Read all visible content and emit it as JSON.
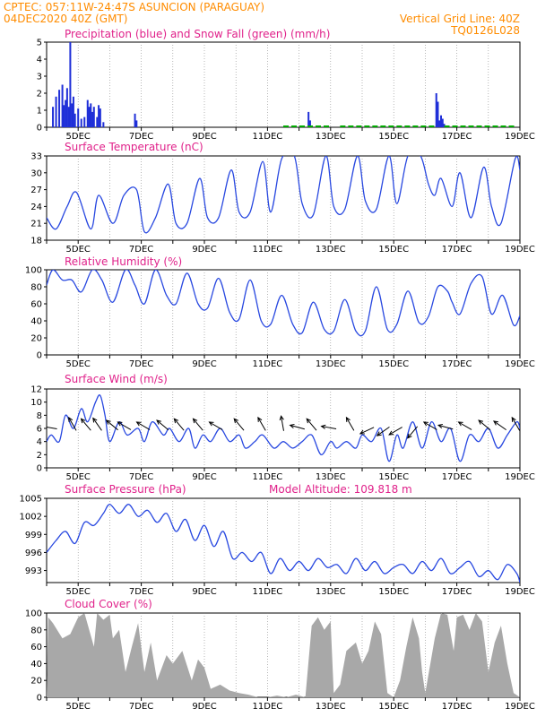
{
  "header": {
    "line1": "CPTEC:   057:11W-24:47S   ASUNCION (PARAGUAY)",
    "date": "04DEC2020 40Z (GMT)",
    "grid_note": "Vertical Grid Line: 40Z",
    "code": "TQ0126L028"
  },
  "x_ticks": [
    "5DEC",
    "7DEC",
    "9DEC",
    "11DEC",
    "13DEC",
    "15DEC",
    "17DEC",
    "19DEC"
  ],
  "colors": {
    "rain": "#1f2fd8",
    "snow": "#00aa00",
    "line": "#2848e0",
    "cloud": "#a8a8a8",
    "title": "#e0218a",
    "header": "#ff8c00"
  },
  "chart_data": [
    {
      "type": "bar",
      "title": "Precipitation (blue) and Snow Fall (green) (mm/h)",
      "ylim": [
        0,
        5
      ],
      "yticks": [
        "0",
        "1",
        "2",
        "3",
        "4",
        "5"
      ],
      "x_range_days": [
        4,
        19
      ],
      "series": [
        {
          "name": "Precipitation",
          "x": [
            4.2,
            4.3,
            4.4,
            4.5,
            4.55,
            4.6,
            4.65,
            4.7,
            4.75,
            4.8,
            4.85,
            4.9,
            5.0,
            5.1,
            5.2,
            5.3,
            5.35,
            5.4,
            5.45,
            5.5,
            5.6,
            5.65,
            5.7,
            5.8,
            6.8,
            6.85,
            12.3,
            12.35,
            16.35,
            16.4,
            16.45,
            16.5,
            16.55,
            16.6
          ],
          "values": [
            1.2,
            1.8,
            2.2,
            2.5,
            1.3,
            1.6,
            2.3,
            1.2,
            5.0,
            1.4,
            1.8,
            0.8,
            1.1,
            0.5,
            0.6,
            1.6,
            1.2,
            1.4,
            0.9,
            1.2,
            0.6,
            1.3,
            1.1,
            0.3,
            0.8,
            0.4,
            0.9,
            0.4,
            2.0,
            1.5,
            0.4,
            0.7,
            0.5,
            0.2
          ]
        },
        {
          "name": "Snow Fall",
          "x": [],
          "values": []
        }
      ]
    },
    {
      "type": "line",
      "title": "Surface Temperature (nC)",
      "ylim": [
        18,
        33
      ],
      "yticks": [
        "18",
        "21",
        "24",
        "27",
        "30",
        "33"
      ],
      "x_range_days": [
        4,
        19
      ],
      "series": [
        {
          "name": "Temperature",
          "x": [
            4.0,
            4.3,
            4.65,
            4.95,
            5.4,
            5.65,
            6.1,
            6.45,
            6.85,
            7.1,
            7.45,
            7.85,
            8.1,
            8.45,
            8.85,
            9.1,
            9.45,
            9.85,
            10.1,
            10.45,
            10.85,
            11.1,
            11.45,
            11.85,
            12.1,
            12.45,
            12.85,
            13.1,
            13.45,
            13.85,
            14.1,
            14.45,
            14.85,
            15.1,
            15.45,
            15.85,
            16.1,
            16.3,
            16.5,
            16.85,
            17.1,
            17.45,
            17.85,
            18.1,
            18.4,
            18.85,
            19.0
          ],
          "values": [
            22,
            20,
            24,
            26.5,
            20,
            26,
            21,
            26,
            27,
            19.5,
            22,
            28,
            21,
            21,
            29,
            22,
            22,
            30.5,
            23,
            23,
            32,
            23,
            32.5,
            33,
            24.5,
            22.5,
            33,
            24,
            23.5,
            33,
            25,
            23.5,
            33,
            24.5,
            33,
            33,
            28,
            26,
            29,
            24,
            30,
            22,
            31,
            24,
            21,
            32.5,
            30.5
          ]
        }
      ]
    },
    {
      "type": "line",
      "title": "Relative Humidity (%)",
      "ylim": [
        0,
        100
      ],
      "yticks": [
        "0",
        "20",
        "40",
        "60",
        "80",
        "100"
      ],
      "x_range_days": [
        4,
        19
      ],
      "series": [
        {
          "name": "Relative Humidity",
          "x": [
            4.0,
            4.2,
            4.5,
            4.8,
            5.1,
            5.45,
            5.75,
            6.1,
            6.5,
            6.8,
            7.1,
            7.45,
            7.8,
            8.1,
            8.45,
            8.8,
            9.1,
            9.45,
            9.8,
            10.1,
            10.45,
            10.8,
            11.1,
            11.45,
            11.8,
            12.1,
            12.45,
            12.8,
            13.1,
            13.45,
            13.8,
            14.1,
            14.45,
            14.8,
            15.1,
            15.45,
            15.8,
            16.1,
            16.4,
            16.7,
            16.85,
            17.1,
            17.45,
            17.8,
            18.1,
            18.45,
            18.8,
            19.0
          ],
          "values": [
            82,
            100,
            88,
            88,
            74,
            100,
            88,
            62,
            100,
            82,
            60,
            100,
            70,
            60,
            96,
            60,
            55,
            90,
            50,
            42,
            88,
            40,
            36,
            70,
            36,
            26,
            62,
            30,
            28,
            65,
            28,
            28,
            80,
            30,
            36,
            75,
            38,
            45,
            80,
            75,
            62,
            48,
            84,
            92,
            48,
            70,
            35,
            46
          ]
        }
      ]
    },
    {
      "type": "line",
      "title": "Surface Wind (m/s)",
      "ylim": [
        0,
        12
      ],
      "yticks": [
        "0",
        "2",
        "4",
        "6",
        "8",
        "10",
        "12"
      ],
      "x_range_days": [
        4,
        19
      ],
      "series": [
        {
          "name": "Wind speed",
          "x": [
            4.0,
            4.15,
            4.4,
            4.6,
            4.85,
            5.1,
            5.3,
            5.55,
            5.7,
            5.85,
            6.0,
            6.3,
            6.55,
            6.9,
            7.1,
            7.35,
            7.7,
            7.9,
            8.2,
            8.5,
            8.7,
            8.95,
            9.2,
            9.5,
            9.8,
            10.1,
            10.3,
            10.6,
            10.85,
            11.2,
            11.5,
            11.8,
            12.1,
            12.4,
            12.7,
            13.0,
            13.2,
            13.5,
            13.8,
            14.0,
            14.3,
            14.6,
            14.85,
            15.1,
            15.3,
            15.6,
            15.9,
            16.2,
            16.5,
            16.8,
            17.1,
            17.4,
            17.7,
            18.0,
            18.3,
            18.6,
            18.9,
            19.0
          ],
          "values": [
            4,
            5,
            4,
            8,
            6,
            9,
            7,
            10,
            11,
            8,
            4,
            7,
            5,
            6,
            4,
            7,
            5,
            6,
            4,
            6,
            3,
            5,
            4,
            6,
            4,
            5,
            3,
            4,
            5,
            3,
            4,
            3,
            4,
            5,
            2,
            4,
            3,
            4,
            3,
            5,
            4,
            6,
            1,
            5,
            3,
            7,
            3,
            7,
            4,
            6,
            1,
            5,
            4,
            6,
            3,
            5,
            7,
            6
          ]
        }
      ],
      "arrows": [
        {
          "x": 4.25,
          "dir_deg": 170
        },
        {
          "x": 4.9,
          "dir_deg": 120
        },
        {
          "x": 5.35,
          "dir_deg": 130
        },
        {
          "x": 5.7,
          "dir_deg": 125
        },
        {
          "x": 6.2,
          "dir_deg": 140
        },
        {
          "x": 6.6,
          "dir_deg": 150
        },
        {
          "x": 7.2,
          "dir_deg": 150
        },
        {
          "x": 7.8,
          "dir_deg": 140
        },
        {
          "x": 8.3,
          "dir_deg": 130
        },
        {
          "x": 8.9,
          "dir_deg": 130
        },
        {
          "x": 9.5,
          "dir_deg": 150
        },
        {
          "x": 10.2,
          "dir_deg": 130
        },
        {
          "x": 10.9,
          "dir_deg": 120
        },
        {
          "x": 11.5,
          "dir_deg": 100
        },
        {
          "x": 12.1,
          "dir_deg": 165
        },
        {
          "x": 12.5,
          "dir_deg": 130
        },
        {
          "x": 13.1,
          "dir_deg": 170
        },
        {
          "x": 13.7,
          "dir_deg": 120
        },
        {
          "x": 14.3,
          "dir_deg": 205
        },
        {
          "x": 14.8,
          "dir_deg": 215
        },
        {
          "x": 15.2,
          "dir_deg": 210
        },
        {
          "x": 15.7,
          "dir_deg": 230
        },
        {
          "x": 16.3,
          "dir_deg": 150
        },
        {
          "x": 16.8,
          "dir_deg": 165
        },
        {
          "x": 17.4,
          "dir_deg": 150
        },
        {
          "x": 18.0,
          "dir_deg": 140
        },
        {
          "x": 18.5,
          "dir_deg": 145
        },
        {
          "x": 18.95,
          "dir_deg": 120
        }
      ]
    },
    {
      "type": "line",
      "title": "Surface Pressure (hPa)",
      "subtitle": "Model Altitude: 109.818  m",
      "ylim": [
        991,
        1005
      ],
      "yticks": [
        "993",
        "996",
        "999",
        "1002",
        "1005"
      ],
      "x_range_days": [
        4,
        19
      ],
      "series": [
        {
          "name": "Pressure",
          "x": [
            4.0,
            4.3,
            4.6,
            4.9,
            5.2,
            5.5,
            5.8,
            6.0,
            6.3,
            6.6,
            6.9,
            7.2,
            7.5,
            7.8,
            8.1,
            8.4,
            8.7,
            9.0,
            9.3,
            9.6,
            9.9,
            10.2,
            10.5,
            10.8,
            11.1,
            11.4,
            11.7,
            12.0,
            12.3,
            12.6,
            12.9,
            13.2,
            13.5,
            13.8,
            14.1,
            14.4,
            14.7,
            15.0,
            15.3,
            15.6,
            15.9,
            16.2,
            16.5,
            16.8,
            17.1,
            17.4,
            17.7,
            18.0,
            18.3,
            18.6,
            18.9,
            19.0
          ],
          "values": [
            996,
            998,
            999.5,
            997.5,
            1001,
            1000.5,
            1002.5,
            1004,
            1002.5,
            1004,
            1002,
            1003,
            1001,
            1002.5,
            999.5,
            1001.5,
            998,
            1000.5,
            997,
            999.5,
            995,
            996,
            994.5,
            996,
            992.5,
            995,
            993,
            994.5,
            993,
            995,
            993.5,
            994,
            992.5,
            995,
            993,
            994.5,
            992.5,
            993.5,
            994,
            992.5,
            994.5,
            993,
            995,
            992.5,
            993.5,
            994.5,
            992,
            993,
            991.5,
            994,
            992.5,
            991
          ]
        }
      ]
    },
    {
      "type": "area",
      "title": "Cloud Cover (%)",
      "ylim": [
        0,
        100
      ],
      "yticks": [
        "0",
        "20",
        "40",
        "60",
        "80",
        "100"
      ],
      "x_range_days": [
        4,
        19
      ],
      "series": [
        {
          "name": "Cloud Cover",
          "x": [
            4.0,
            4.05,
            4.2,
            4.5,
            4.75,
            5.0,
            5.2,
            5.5,
            5.6,
            5.8,
            6.0,
            6.1,
            6.3,
            6.5,
            6.7,
            6.9,
            7.1,
            7.3,
            7.5,
            7.8,
            8.0,
            8.3,
            8.6,
            8.8,
            9.0,
            9.2,
            9.5,
            9.8,
            10.1,
            10.4,
            10.7,
            11.0,
            11.3,
            11.6,
            11.9,
            12.2,
            12.4,
            12.6,
            12.8,
            13.0,
            13.1,
            13.3,
            13.5,
            13.8,
            14.0,
            14.2,
            14.4,
            14.6,
            14.8,
            15.0,
            15.2,
            15.4,
            15.6,
            15.8,
            15.9,
            16.0,
            16.3,
            16.5,
            16.7,
            16.9,
            17.0,
            17.2,
            17.4,
            17.6,
            17.8,
            18.0,
            18.2,
            18.4,
            18.6,
            18.8,
            19.0
          ],
          "values": [
            0,
            95,
            88,
            70,
            75,
            95,
            100,
            60,
            100,
            92,
            98,
            70,
            80,
            30,
            60,
            88,
            30,
            65,
            20,
            50,
            40,
            55,
            20,
            45,
            35,
            10,
            15,
            8,
            5,
            3,
            0,
            0,
            2,
            0,
            3,
            0,
            85,
            95,
            80,
            90,
            5,
            15,
            55,
            65,
            40,
            55,
            90,
            75,
            5,
            0,
            20,
            60,
            95,
            70,
            30,
            5,
            70,
            100,
            98,
            55,
            95,
            98,
            80,
            100,
            90,
            30,
            65,
            85,
            40,
            5,
            0
          ]
        }
      ]
    }
  ]
}
